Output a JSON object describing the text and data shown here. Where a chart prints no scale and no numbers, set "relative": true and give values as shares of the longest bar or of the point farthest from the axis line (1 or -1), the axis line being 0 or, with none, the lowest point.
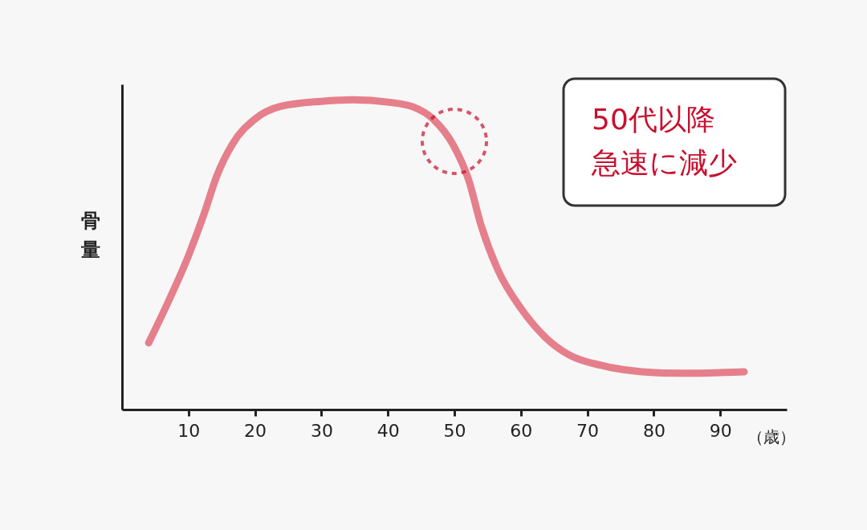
{
  "chart_data": {
    "type": "line",
    "relative": true,
    "xlabel": "（歳）",
    "ylabel": "骨量",
    "xlim": [
      0,
      100
    ],
    "xticks": [
      10,
      20,
      30,
      40,
      50,
      60,
      70,
      80,
      90
    ],
    "grid": false,
    "marker": "none",
    "line_style": "solid",
    "x": [
      4,
      7,
      10,
      12.4,
      14.2,
      16.7,
      20,
      23.9,
      30,
      34.8,
      40.2,
      43.8,
      46.8,
      49.8,
      52.2,
      54,
      56.5,
      60.1,
      63.7,
      67.3,
      72.2,
      78.2,
      84.2,
      93.6
    ],
    "series": [
      {
        "color": "#e57f8b",
        "values": [
          0.215,
          0.35,
          0.497,
          0.635,
          0.751,
          0.86,
          0.938,
          0.979,
          0.995,
          1.0,
          0.992,
          0.977,
          0.938,
          0.855,
          0.738,
          0.596,
          0.453,
          0.324,
          0.233,
          0.176,
          0.142,
          0.122,
          0.117,
          0.122
        ]
      }
    ],
    "annotations": [
      "50代以降",
      "急速に減少"
    ]
  }
}
